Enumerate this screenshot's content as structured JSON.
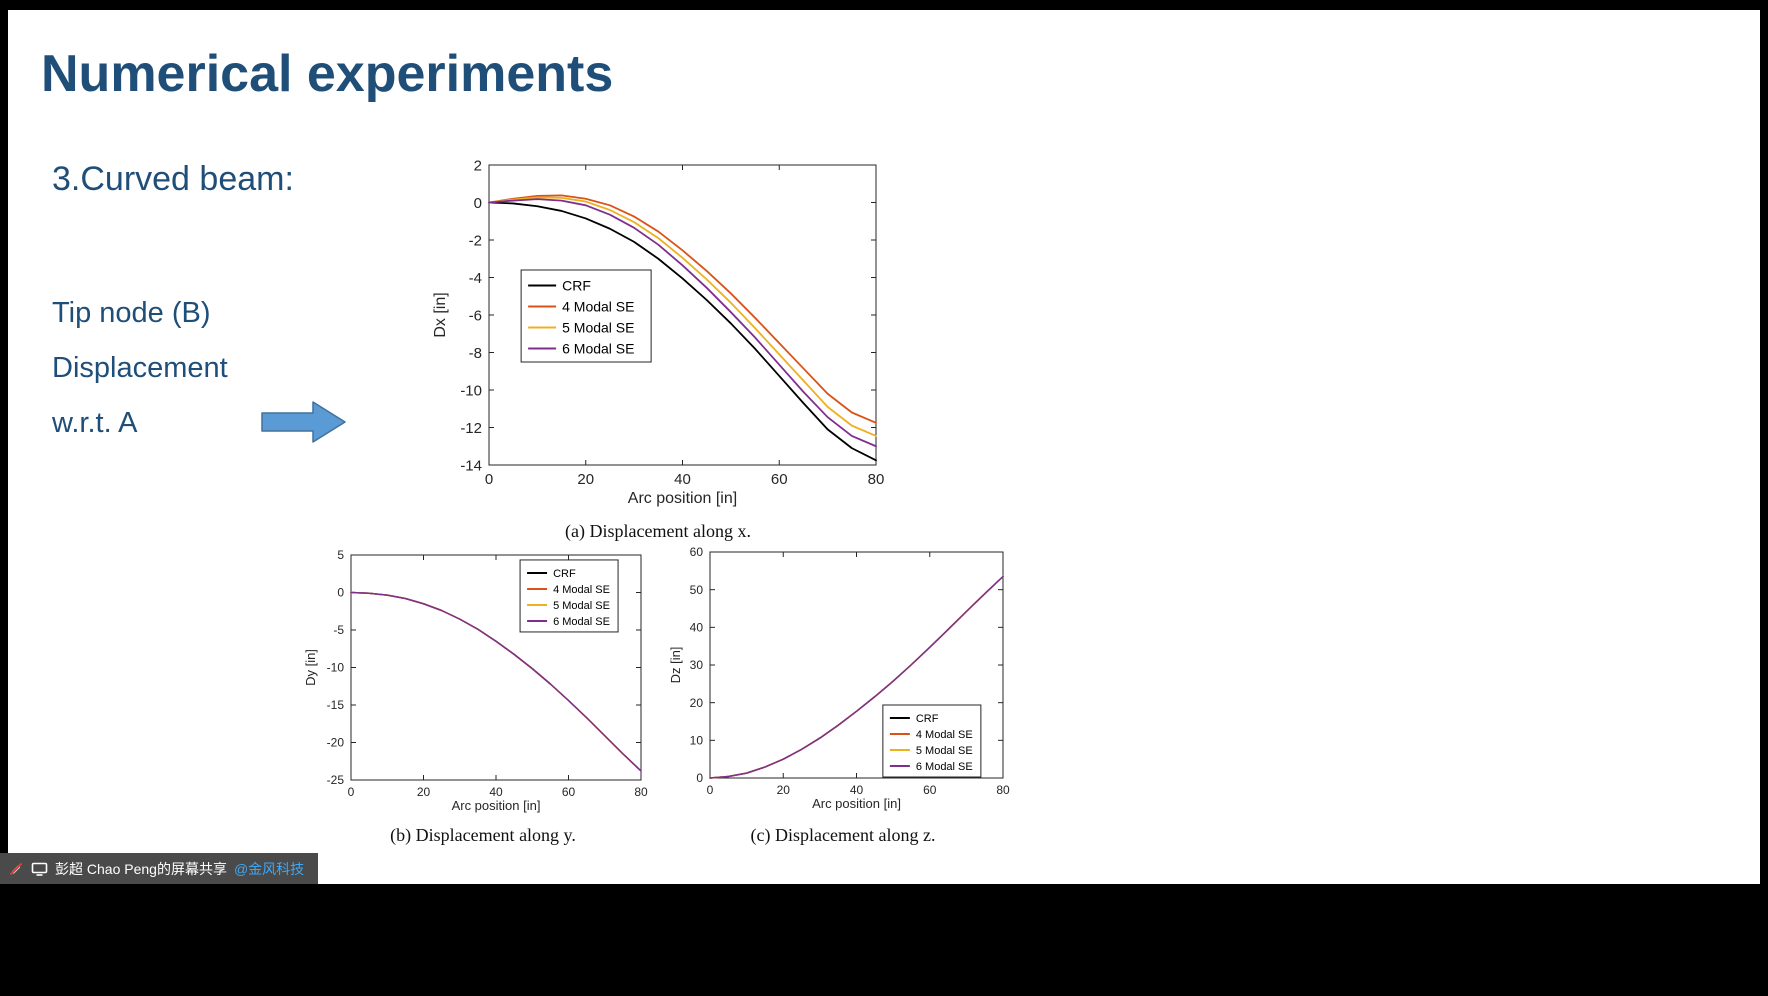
{
  "slide": {
    "title": "Numerical experiments",
    "subtitle": "3.Curved beam:",
    "notes": [
      "Tip node (B)",
      "Displacement",
      "w.r.t. A"
    ],
    "captions": {
      "a": "(a) Displacement along x.",
      "b": "(b) Displacement along y.",
      "c": "(c) Displacement along z."
    }
  },
  "share_bar": {
    "text": "彭超 Chao Peng的屏幕共享",
    "link": "@金风科技"
  },
  "colors": {
    "title_blue": "#1F4E79",
    "arrow_fill": "#5B9BD5",
    "arrow_stroke": "#41719C",
    "crf": "#000000",
    "modal4": "#D95319",
    "modal5": "#EDB120",
    "modal6": "#7E2F8E"
  },
  "chart_data": [
    {
      "id": "a",
      "type": "line",
      "title": "",
      "xlabel": "Arc position [in]",
      "ylabel": "Dx [in]",
      "xlim": [
        0,
        80
      ],
      "ylim": [
        -14,
        2
      ],
      "xticks": [
        0,
        20,
        40,
        60,
        80
      ],
      "yticks": [
        2,
        0,
        -2,
        -4,
        -6,
        -8,
        -10,
        -12,
        -14
      ],
      "grid": false,
      "legend_position": "center-left",
      "x": [
        0,
        5,
        10,
        15,
        20,
        25,
        30,
        35,
        40,
        45,
        50,
        55,
        60,
        65,
        70,
        75,
        80
      ],
      "series": [
        {
          "name": "CRF",
          "color": "#000000",
          "values": [
            0,
            -0.05,
            -0.2,
            -0.45,
            -0.85,
            -1.4,
            -2.1,
            -3.0,
            -4.05,
            -5.2,
            -6.45,
            -7.8,
            -9.25,
            -10.7,
            -12.1,
            -13.1,
            -13.75
          ]
        },
        {
          "name": "4 Modal SE",
          "color": "#D95319",
          "values": [
            0,
            0.2,
            0.35,
            0.38,
            0.2,
            -0.15,
            -0.75,
            -1.55,
            -2.55,
            -3.65,
            -4.85,
            -6.15,
            -7.5,
            -8.85,
            -10.2,
            -11.2,
            -11.75
          ]
        },
        {
          "name": "5 Modal SE",
          "color": "#EDB120",
          "values": [
            0,
            0.15,
            0.27,
            0.25,
            0.05,
            -0.4,
            -1.05,
            -1.9,
            -2.95,
            -4.1,
            -5.35,
            -6.7,
            -8.1,
            -9.5,
            -10.9,
            -11.9,
            -12.45
          ]
        },
        {
          "name": "6 Modal SE",
          "color": "#7E2F8E",
          "values": [
            0,
            0.1,
            0.18,
            0.1,
            -0.15,
            -0.65,
            -1.35,
            -2.25,
            -3.35,
            -4.55,
            -5.85,
            -7.2,
            -8.65,
            -10.1,
            -11.45,
            -12.45,
            -13.0
          ]
        }
      ]
    },
    {
      "id": "b",
      "type": "line",
      "title": "",
      "xlabel": "Arc position [in]",
      "ylabel": "Dy [in]",
      "xlim": [
        0,
        80
      ],
      "ylim": [
        -25,
        5
      ],
      "xticks": [
        0,
        20,
        40,
        60,
        80
      ],
      "yticks": [
        5,
        0,
        -5,
        -10,
        -15,
        -20,
        -25
      ],
      "grid": false,
      "legend_position": "top-right",
      "x": [
        0,
        5,
        10,
        15,
        20,
        25,
        30,
        35,
        40,
        45,
        50,
        55,
        60,
        65,
        70,
        75,
        80
      ],
      "series": [
        {
          "name": "CRF",
          "color": "#000000",
          "values": [
            0,
            -0.1,
            -0.35,
            -0.8,
            -1.5,
            -2.4,
            -3.55,
            -4.9,
            -6.5,
            -8.25,
            -10.15,
            -12.2,
            -14.4,
            -16.7,
            -19.1,
            -21.5,
            -23.8
          ]
        },
        {
          "name": "4 Modal SE",
          "color": "#D95319",
          "values": [
            0,
            -0.1,
            -0.35,
            -0.8,
            -1.5,
            -2.4,
            -3.55,
            -4.9,
            -6.5,
            -8.25,
            -10.15,
            -12.2,
            -14.4,
            -16.7,
            -19.1,
            -21.5,
            -23.8
          ]
        },
        {
          "name": "5 Modal SE",
          "color": "#EDB120",
          "values": [
            0,
            -0.1,
            -0.35,
            -0.8,
            -1.5,
            -2.4,
            -3.55,
            -4.9,
            -6.5,
            -8.25,
            -10.15,
            -12.2,
            -14.4,
            -16.7,
            -19.1,
            -21.5,
            -23.8
          ]
        },
        {
          "name": "6 Modal SE",
          "color": "#7E2F8E",
          "values": [
            0,
            -0.1,
            -0.35,
            -0.8,
            -1.5,
            -2.4,
            -3.55,
            -4.9,
            -6.5,
            -8.25,
            -10.15,
            -12.2,
            -14.4,
            -16.7,
            -19.1,
            -21.5,
            -23.8
          ]
        }
      ]
    },
    {
      "id": "c",
      "type": "line",
      "title": "",
      "xlabel": "Arc position [in]",
      "ylabel": "Dz [in]",
      "xlim": [
        0,
        80
      ],
      "ylim": [
        0,
        60
      ],
      "xticks": [
        0,
        20,
        40,
        60,
        80
      ],
      "yticks": [
        0,
        10,
        20,
        30,
        40,
        50,
        60
      ],
      "grid": false,
      "legend_position": "bottom-right",
      "x": [
        0,
        5,
        10,
        15,
        20,
        25,
        30,
        35,
        40,
        45,
        50,
        55,
        60,
        65,
        70,
        75,
        80
      ],
      "series": [
        {
          "name": "CRF",
          "color": "#000000",
          "values": [
            0,
            0.4,
            1.3,
            2.9,
            5.0,
            7.6,
            10.6,
            14.0,
            17.7,
            21.6,
            25.7,
            30.1,
            34.7,
            39.4,
            44.2,
            48.9,
            53.5
          ]
        },
        {
          "name": "4 Modal SE",
          "color": "#D95319",
          "values": [
            0,
            0.4,
            1.3,
            2.9,
            5.0,
            7.6,
            10.6,
            14.0,
            17.7,
            21.6,
            25.7,
            30.1,
            34.7,
            39.4,
            44.2,
            48.9,
            53.5
          ]
        },
        {
          "name": "5 Modal SE",
          "color": "#EDB120",
          "values": [
            0,
            0.4,
            1.3,
            2.9,
            5.0,
            7.6,
            10.6,
            14.0,
            17.7,
            21.6,
            25.7,
            30.1,
            34.7,
            39.4,
            44.2,
            48.9,
            53.5
          ]
        },
        {
          "name": "6 Modal SE",
          "color": "#7E2F8E",
          "values": [
            0,
            0.4,
            1.3,
            2.9,
            5.0,
            7.6,
            10.6,
            14.0,
            17.7,
            21.6,
            25.7,
            30.1,
            34.7,
            39.4,
            44.2,
            48.9,
            53.5
          ]
        }
      ]
    }
  ]
}
